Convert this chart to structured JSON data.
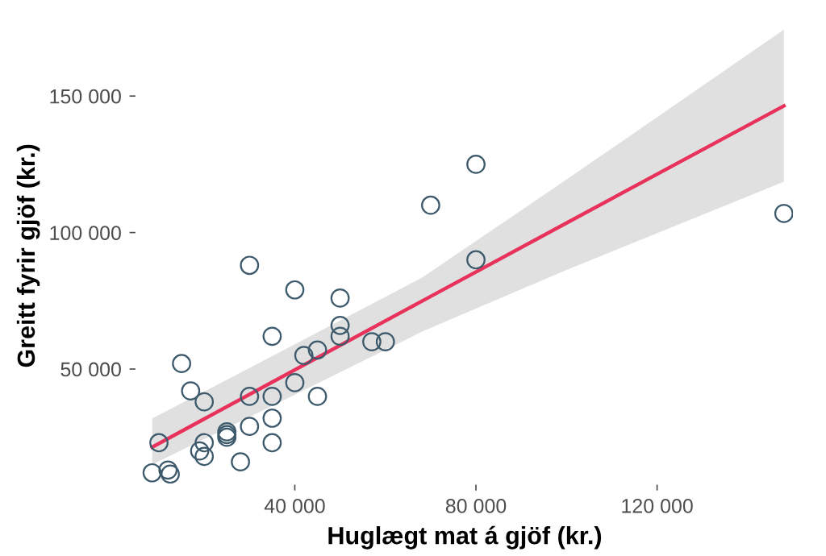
{
  "chart_data": {
    "type": "scatter",
    "xlabel": "Huglægt mat á gjöf (kr.)",
    "ylabel": "Greitt fyrir gjöf (kr.)",
    "xlim": [
      5000,
      150000
    ],
    "ylim": [
      8000,
      175000
    ],
    "xticks": [
      {
        "value": 40000,
        "label": "40 000"
      },
      {
        "value": 80000,
        "label": "80 000"
      },
      {
        "value": 120000,
        "label": "120 000"
      }
    ],
    "yticks": [
      {
        "value": 50000,
        "label": "50 000"
      },
      {
        "value": 100000,
        "label": "100 000"
      },
      {
        "value": 150000,
        "label": "150 000"
      }
    ],
    "grid": false,
    "legend": false,
    "series": [
      {
        "color": "#3d5a6c",
        "marker": "circle",
        "x": [
          30000,
          40000,
          50000,
          50000,
          50000,
          35000,
          57000,
          60000,
          42000,
          45000,
          15000,
          17000,
          20000,
          30000,
          35000,
          40000,
          45000,
          35000,
          30000,
          25000,
          25000,
          25000,
          20000,
          19000,
          20000,
          35000,
          28000,
          10000,
          8500,
          12000,
          12500,
          80000,
          70000,
          80000,
          148000
        ],
        "values": [
          88000,
          79000,
          76000,
          66000,
          62000,
          62000,
          60000,
          60000,
          55000,
          57000,
          52000,
          42000,
          38000,
          40000,
          40000,
          45000,
          40000,
          32000,
          29000,
          27000,
          26000,
          25000,
          23000,
          20000,
          18000,
          23000,
          16000,
          23000,
          12000,
          13000,
          11500,
          125000,
          110000,
          90000,
          107000
        ]
      },
      {
        "type": "line",
        "color": "#e8315b",
        "marker": "none",
        "line_style": "solid",
        "x": [
          8500,
          35000,
          68100,
          100000,
          148000
        ],
        "values": [
          21400,
          45200,
          74900,
          103500,
          146400
        ],
        "lower": [
          15000,
          36500,
          63700,
          86300,
          118600
        ],
        "upper": [
          31900,
          54700,
          83500,
          119400,
          174300
        ]
      }
    ]
  }
}
